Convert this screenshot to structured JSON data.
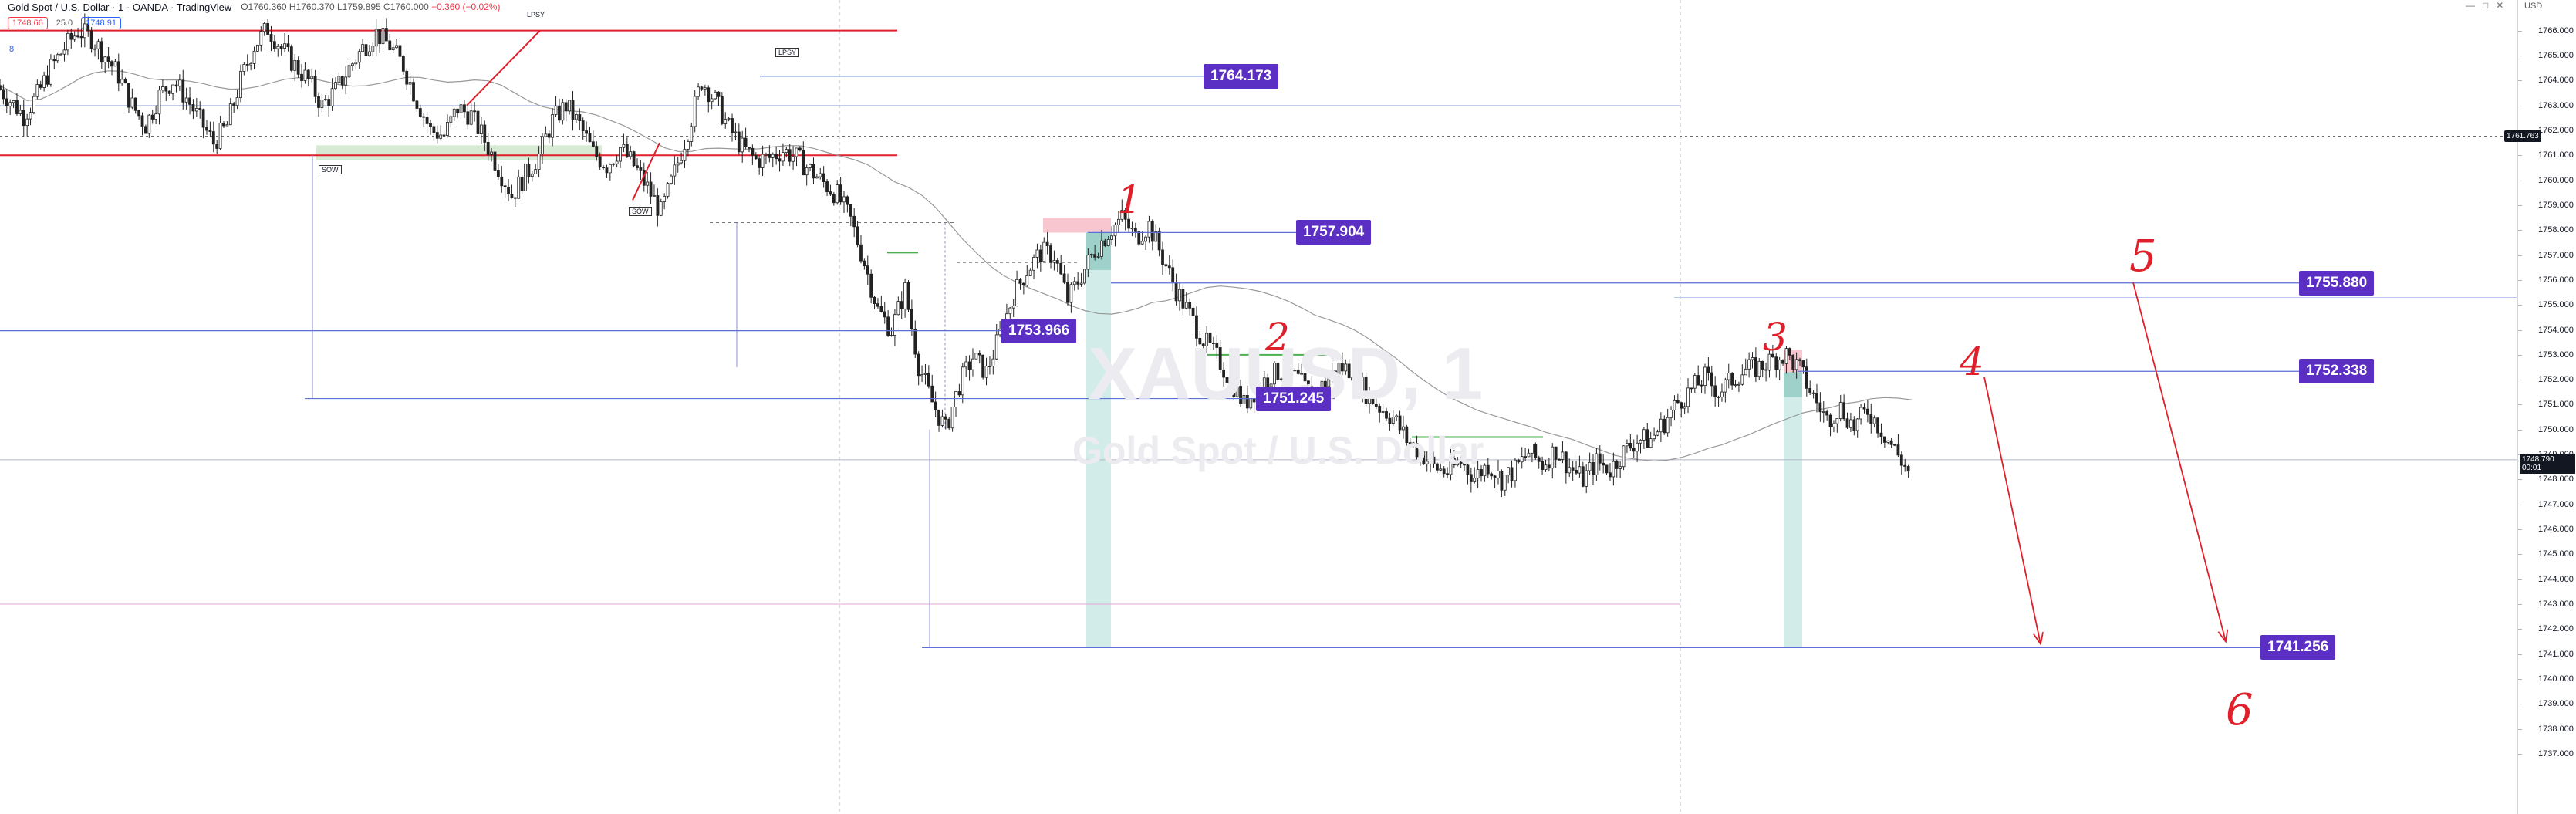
{
  "header": {
    "title": "Gold Spot / U.S. Dollar · 1 · OANDA · TradingView",
    "sell_price": "1748.66",
    "spread": "25.0",
    "buy_price": "1748.91",
    "ohlc": "O1760.360 H1760.370 L1759.895 C1760.000",
    "change": "−0.360 (−0.02%)"
  },
  "indicator_label": "8",
  "axis": {
    "currency": "USD",
    "window_icons": [
      "—",
      "□",
      "✕"
    ],
    "price_tag_top": "1761.763",
    "price_tag_current": "1748.790",
    "price_tag_timer": "00:01"
  },
  "watermark": {
    "symbol": "XAUUSD, 1",
    "name": "Gold Spot / U.S. Dollar"
  },
  "annotations": {
    "wyckoff": [
      "SOW",
      "SOW",
      "LPSY",
      "LPSY"
    ],
    "numbers": [
      "1",
      "2",
      "3",
      "4",
      "5",
      "6"
    ]
  },
  "chart_data": {
    "type": "candlestick",
    "title": "Gold Spot / U.S. Dollar · 1 · OANDA",
    "ylim": [
      1736.0,
      1766.5
    ],
    "ytick_start": 1737.0,
    "ytick_end": 1766.0,
    "ytick_step": 1.0,
    "ytick_format": "3 decimals",
    "grid": false,
    "price_levels": [
      {
        "value": 1764.173,
        "label": "1764.173"
      },
      {
        "value": 1757.904,
        "label": "1757.904"
      },
      {
        "value": 1755.88,
        "label": "1755.880"
      },
      {
        "value": 1753.966,
        "label": "1753.966"
      },
      {
        "value": 1752.338,
        "label": "1752.338"
      },
      {
        "value": 1751.245,
        "label": "1751.245"
      },
      {
        "value": 1741.256,
        "label": "1741.256"
      }
    ],
    "price_path": [
      1763.8,
      1763.2,
      1762.6,
      1763.4,
      1764.5,
      1765.3,
      1766.0,
      1765.7,
      1765.0,
      1764.2,
      1763.0,
      1762.2,
      1763.4,
      1764.0,
      1763.3,
      1762.4,
      1761.5,
      1762.2,
      1764.0,
      1765.4,
      1766.1,
      1765.3,
      1764.6,
      1764.0,
      1763.0,
      1763.6,
      1764.5,
      1765.3,
      1765.9,
      1765.4,
      1764.6,
      1763.2,
      1762.0,
      1761.8,
      1762.9,
      1762.6,
      1761.6,
      1760.5,
      1759.4,
      1760.2,
      1761.0,
      1762.4,
      1763.0,
      1762.2,
      1761.1,
      1760.6,
      1761.3,
      1760.6,
      1759.7,
      1758.7,
      1760.3,
      1762.0,
      1764.0,
      1763.2,
      1762.1,
      1761.3,
      1760.8,
      1760.9,
      1761.2,
      1760.9,
      1760.4,
      1759.9,
      1759.4,
      1758.4,
      1756.7,
      1754.8,
      1754.0,
      1755.6,
      1752.6,
      1751.1,
      1750.0,
      1751.8,
      1752.9,
      1752.3,
      1753.8,
      1755.4,
      1756.4,
      1757.1,
      1757.0,
      1755.2,
      1756.2,
      1757.2,
      1757.9,
      1758.5,
      1757.7,
      1758.2,
      1756.9,
      1755.6,
      1754.6,
      1753.6,
      1752.9,
      1752.0,
      1751.0,
      1751.7,
      1752.2,
      1752.4,
      1752.0,
      1751.3,
      1751.9,
      1752.5,
      1752.4,
      1751.5,
      1750.9,
      1750.5,
      1749.6,
      1749.1,
      1748.5,
      1748.3,
      1748.7,
      1748.1,
      1748.6,
      1748.0,
      1748.4,
      1749.1,
      1748.6,
      1749.2,
      1748.5,
      1748.0,
      1748.7,
      1748.4,
      1749.1,
      1749.6,
      1749.6,
      1750.3,
      1751.1,
      1751.6,
      1752.1,
      1751.5,
      1752.0,
      1752.4,
      1752.5,
      1752.8,
      1753.0,
      1752.4,
      1751.3,
      1750.4,
      1750.9,
      1750.1,
      1750.8,
      1750.0,
      1749.2,
      1748.3
    ]
  }
}
